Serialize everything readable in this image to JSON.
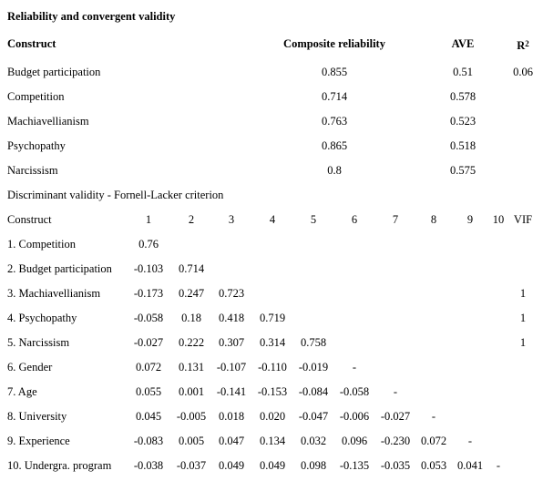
{
  "title": "Reliability and convergent validity",
  "table1": {
    "header": {
      "construct": "Construct",
      "cr": "Composite reliability",
      "ave": "AVE",
      "r2": {
        "base": "R",
        "sup": "2"
      }
    },
    "rows": [
      {
        "label": "Budget participation",
        "cr": "0.855",
        "ave": "0.51",
        "r2": "0.06"
      },
      {
        "label": "Competition",
        "cr": "0.714",
        "ave": "0.578"
      },
      {
        "label": "Machiavellianism",
        "cr": "0.763",
        "ave": "0.523"
      },
      {
        "label": "Psychopathy",
        "cr": "0.865",
        "ave": "0.518"
      },
      {
        "label": "Narcissism",
        "cr": "0.8",
        "ave": "0.575"
      }
    ]
  },
  "subtitle": "Discriminant validity - Fornell-Lacker criterion",
  "table2": {
    "header": [
      "Construct",
      "1",
      "2",
      "3",
      "4",
      "5",
      "6",
      "7",
      "8",
      "9",
      "10",
      "VIF"
    ],
    "rows": [
      {
        "label": "1. Competition",
        "cells": [
          "0.76"
        ]
      },
      {
        "label": "2. Budget participation",
        "cells": [
          "-0.103",
          "0.714"
        ]
      },
      {
        "label": "3. Machiavellianism",
        "cells": [
          "-0.173",
          "0.247",
          "0.723"
        ],
        "vif": "1"
      },
      {
        "label": "4. Psychopathy",
        "cells": [
          "-0.058",
          "0.18",
          "0.418",
          "0.719"
        ],
        "vif": "1"
      },
      {
        "label": "5. Narcissism",
        "cells": [
          "-0.027",
          "0.222",
          "0.307",
          "0.314",
          "0.758"
        ],
        "vif": "1"
      },
      {
        "label": "6. Gender",
        "cells": [
          "0.072",
          "0.131",
          "-0.107",
          "-0.110",
          "-0.019",
          "-"
        ]
      },
      {
        "label": "7. Age",
        "cells": [
          "0.055",
          "0.001",
          "-0.141",
          "-0.153",
          "-0.084",
          "-0.058",
          "-"
        ]
      },
      {
        "label": "8. University",
        "cells": [
          "0.045",
          "-0.005",
          "0.018",
          "0.020",
          "-0.047",
          "-0.006",
          "-0.027",
          "-"
        ]
      },
      {
        "label": "9. Experience",
        "cells": [
          "-0.083",
          "0.005",
          "0.047",
          "0.134",
          "0.032",
          "0.096",
          "-0.230",
          "0.072",
          "-"
        ]
      },
      {
        "label": "10. Undergra. program",
        "cells": [
          "-0.038",
          "-0.037",
          "0.049",
          "0.049",
          "0.098",
          "-0.135",
          "-0.035",
          "0.053",
          "0.041",
          "-"
        ]
      }
    ]
  }
}
